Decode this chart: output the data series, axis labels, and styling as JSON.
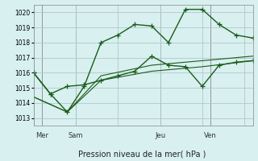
{
  "background_color": "#d8f0f0",
  "grid_color": "#b0c8c8",
  "line_color": "#1a5c1a",
  "title": "Pression niveau de la mer( hPa )",
  "ylabel_ticks": [
    1013,
    1014,
    1015,
    1016,
    1017,
    1018,
    1019,
    1020
  ],
  "ylim": [
    1012.5,
    1020.5
  ],
  "xlim": [
    0,
    13
  ],
  "day_labels": [
    "Mer",
    "Sam",
    "Jeu",
    "Ven"
  ],
  "day_positions": [
    0.5,
    2.5,
    7.5,
    10.5
  ],
  "day_vlines": [
    0.5,
    2.5,
    7.5,
    10.5
  ],
  "series1_x": [
    0,
    1,
    2,
    3,
    4,
    5,
    6,
    7,
    8,
    9,
    10,
    11,
    12,
    13
  ],
  "series1_y": [
    1016.0,
    1014.6,
    1013.4,
    1015.1,
    1018.0,
    1018.5,
    1019.2,
    1019.1,
    1018.0,
    1020.2,
    1020.2,
    1019.2,
    1018.5,
    1018.3
  ],
  "series2_x": [
    0,
    1,
    2,
    3,
    4,
    5,
    6,
    7,
    8,
    9,
    10,
    11,
    12,
    13
  ],
  "series2_y": [
    1016.0,
    1014.6,
    1015.1,
    1015.2,
    1015.5,
    1015.8,
    1016.1,
    1017.1,
    1016.5,
    1016.4,
    1015.1,
    1016.5,
    1016.7,
    1016.8
  ],
  "series3_x": [
    0,
    2,
    4,
    7,
    10,
    13
  ],
  "series3_y": [
    1014.4,
    1013.4,
    1015.5,
    1016.1,
    1016.4,
    1016.8
  ],
  "series4_x": [
    0,
    2,
    4,
    7,
    10,
    13
  ],
  "series4_y": [
    1014.4,
    1013.4,
    1015.8,
    1016.5,
    1016.8,
    1017.1
  ]
}
